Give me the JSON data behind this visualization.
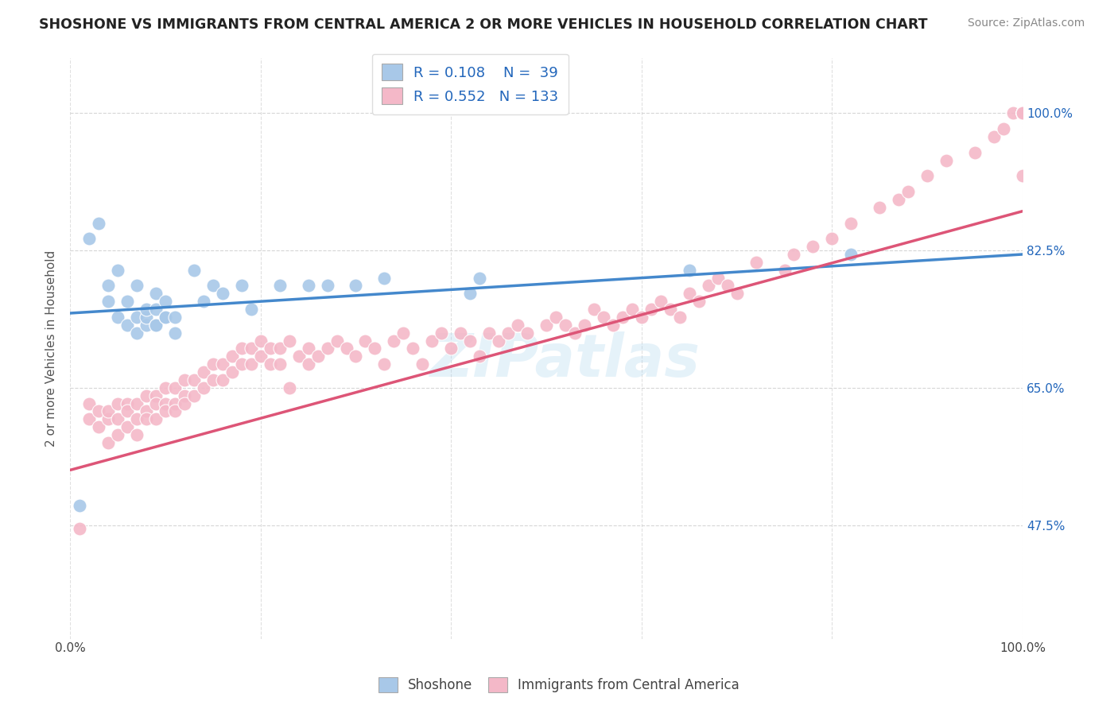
{
  "title": "SHOSHONE VS IMMIGRANTS FROM CENTRAL AMERICA 2 OR MORE VEHICLES IN HOUSEHOLD CORRELATION CHART",
  "source": "Source: ZipAtlas.com",
  "ylabel": "2 or more Vehicles in Household",
  "y_tick_labels": [
    "47.5%",
    "65.0%",
    "82.5%",
    "100.0%"
  ],
  "y_tick_values": [
    0.475,
    0.65,
    0.825,
    1.0
  ],
  "xlim": [
    0.0,
    1.0
  ],
  "ylim": [
    0.33,
    1.07
  ],
  "blue_R": 0.108,
  "blue_N": 39,
  "pink_R": 0.552,
  "pink_N": 133,
  "blue_color": "#a8c8e8",
  "pink_color": "#f4b8c8",
  "blue_line_color": "#4488cc",
  "pink_line_color": "#dd5577",
  "legend_text_color": "#2266bb",
  "watermark": "ZIPatlas",
  "blue_line_x0": 0.0,
  "blue_line_y0": 0.745,
  "blue_line_x1": 1.0,
  "blue_line_y1": 0.82,
  "pink_line_x0": 0.0,
  "pink_line_y0": 0.545,
  "pink_line_x1": 1.0,
  "pink_line_y1": 0.875,
  "blue_scatter_x": [
    0.01,
    0.02,
    0.03,
    0.04,
    0.04,
    0.05,
    0.05,
    0.06,
    0.06,
    0.07,
    0.07,
    0.07,
    0.08,
    0.08,
    0.08,
    0.09,
    0.09,
    0.09,
    0.09,
    0.1,
    0.1,
    0.1,
    0.11,
    0.11,
    0.13,
    0.14,
    0.15,
    0.16,
    0.18,
    0.19,
    0.22,
    0.25,
    0.27,
    0.3,
    0.33,
    0.42,
    0.43,
    0.65,
    0.82
  ],
  "blue_scatter_y": [
    0.5,
    0.84,
    0.86,
    0.76,
    0.78,
    0.74,
    0.8,
    0.73,
    0.76,
    0.72,
    0.74,
    0.78,
    0.73,
    0.74,
    0.75,
    0.73,
    0.73,
    0.75,
    0.77,
    0.74,
    0.74,
    0.76,
    0.72,
    0.74,
    0.8,
    0.76,
    0.78,
    0.77,
    0.78,
    0.75,
    0.78,
    0.78,
    0.78,
    0.78,
    0.79,
    0.77,
    0.79,
    0.8,
    0.82
  ],
  "pink_scatter_x": [
    0.01,
    0.02,
    0.02,
    0.03,
    0.03,
    0.04,
    0.04,
    0.04,
    0.05,
    0.05,
    0.05,
    0.06,
    0.06,
    0.06,
    0.07,
    0.07,
    0.07,
    0.08,
    0.08,
    0.08,
    0.09,
    0.09,
    0.09,
    0.1,
    0.1,
    0.1,
    0.11,
    0.11,
    0.11,
    0.12,
    0.12,
    0.12,
    0.13,
    0.13,
    0.14,
    0.14,
    0.15,
    0.15,
    0.16,
    0.16,
    0.17,
    0.17,
    0.18,
    0.18,
    0.19,
    0.19,
    0.2,
    0.2,
    0.21,
    0.21,
    0.22,
    0.22,
    0.23,
    0.23,
    0.24,
    0.25,
    0.25,
    0.26,
    0.27,
    0.28,
    0.29,
    0.3,
    0.31,
    0.32,
    0.33,
    0.34,
    0.35,
    0.36,
    0.37,
    0.38,
    0.39,
    0.4,
    0.41,
    0.42,
    0.43,
    0.44,
    0.45,
    0.46,
    0.47,
    0.48,
    0.5,
    0.51,
    0.52,
    0.53,
    0.54,
    0.55,
    0.56,
    0.57,
    0.58,
    0.59,
    0.6,
    0.61,
    0.62,
    0.63,
    0.64,
    0.65,
    0.66,
    0.67,
    0.68,
    0.69,
    0.7,
    0.72,
    0.75,
    0.76,
    0.78,
    0.8,
    0.82,
    0.85,
    0.87,
    0.88,
    0.9,
    0.92,
    0.95,
    0.97,
    0.98,
    0.99,
    1.0,
    1.0,
    1.0,
    1.0,
    1.0,
    1.0,
    1.0,
    1.0,
    1.0,
    1.0,
    1.0,
    1.0,
    1.0,
    1.0,
    1.0,
    1.0,
    1.0
  ],
  "pink_scatter_y": [
    0.47,
    0.63,
    0.61,
    0.6,
    0.62,
    0.61,
    0.62,
    0.58,
    0.63,
    0.61,
    0.59,
    0.63,
    0.62,
    0.6,
    0.63,
    0.61,
    0.59,
    0.64,
    0.62,
    0.61,
    0.64,
    0.63,
    0.61,
    0.65,
    0.63,
    0.62,
    0.65,
    0.63,
    0.62,
    0.66,
    0.64,
    0.63,
    0.66,
    0.64,
    0.67,
    0.65,
    0.68,
    0.66,
    0.68,
    0.66,
    0.69,
    0.67,
    0.7,
    0.68,
    0.7,
    0.68,
    0.71,
    0.69,
    0.7,
    0.68,
    0.7,
    0.68,
    0.65,
    0.71,
    0.69,
    0.7,
    0.68,
    0.69,
    0.7,
    0.71,
    0.7,
    0.69,
    0.71,
    0.7,
    0.68,
    0.71,
    0.72,
    0.7,
    0.68,
    0.71,
    0.72,
    0.7,
    0.72,
    0.71,
    0.69,
    0.72,
    0.71,
    0.72,
    0.73,
    0.72,
    0.73,
    0.74,
    0.73,
    0.72,
    0.73,
    0.75,
    0.74,
    0.73,
    0.74,
    0.75,
    0.74,
    0.75,
    0.76,
    0.75,
    0.74,
    0.77,
    0.76,
    0.78,
    0.79,
    0.78,
    0.77,
    0.81,
    0.8,
    0.82,
    0.83,
    0.84,
    0.86,
    0.88,
    0.89,
    0.9,
    0.92,
    0.94,
    0.95,
    0.97,
    0.98,
    1.0,
    1.0,
    1.0,
    1.0,
    1.0,
    1.0,
    1.0,
    1.0,
    1.0,
    1.0,
    1.0,
    1.0,
    1.0,
    1.0,
    1.0,
    1.0,
    1.0,
    0.92
  ]
}
